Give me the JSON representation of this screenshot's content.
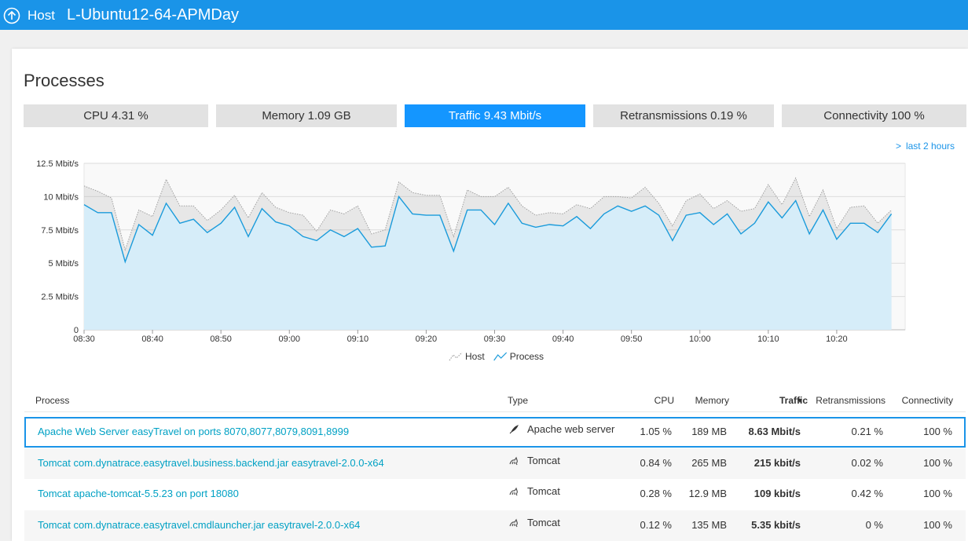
{
  "header": {
    "back": "Host",
    "title": "L-Ubuntu12-64-APMDay"
  },
  "section_title": "Processes",
  "tabs": [
    "CPU 4.31 %",
    "Memory 1.09 GB",
    "Traffic 9.43 Mbit/s",
    "Retransmissions 0.19 %",
    "Connectivity 100 %"
  ],
  "active_tab": 2,
  "time_range": "last 2 hours",
  "chart_data": {
    "type": "area",
    "x": [
      "08:30",
      "08:32",
      "08:34",
      "08:36",
      "08:38",
      "08:40",
      "08:42",
      "08:44",
      "08:46",
      "08:48",
      "08:50",
      "08:52",
      "08:54",
      "08:56",
      "08:58",
      "09:00",
      "09:02",
      "09:04",
      "09:06",
      "09:08",
      "09:10",
      "09:12",
      "09:14",
      "09:16",
      "09:18",
      "09:20",
      "09:22",
      "09:24",
      "09:26",
      "09:28",
      "09:30",
      "09:32",
      "09:34",
      "09:36",
      "09:38",
      "09:40",
      "09:42",
      "09:44",
      "09:46",
      "09:48",
      "09:50",
      "09:52",
      "09:54",
      "09:56",
      "09:58",
      "10:00",
      "10:02",
      "10:04",
      "10:06",
      "10:08",
      "10:10",
      "10:12",
      "10:14",
      "10:16",
      "10:18",
      "10:20",
      "10:22",
      "10:24",
      "10:26",
      "10:28"
    ],
    "series": [
      {
        "name": "Host",
        "color": "#a0a0a0",
        "values": [
          10.8,
          10.4,
          9.9,
          6.0,
          9.0,
          8.5,
          11.3,
          9.3,
          9.3,
          8.2,
          9.0,
          10.1,
          8.4,
          10.3,
          9.2,
          8.8,
          8.6,
          7.4,
          9.0,
          8.7,
          9.3,
          7.2,
          7.5,
          11.1,
          10.3,
          10.1,
          10.1,
          7.0,
          10.5,
          10.0,
          10.0,
          10.7,
          9.3,
          8.6,
          8.8,
          8.7,
          9.4,
          9.1,
          10.0,
          10.0,
          9.9,
          10.7,
          9.5,
          7.8,
          9.7,
          10.2,
          9.1,
          9.7,
          8.9,
          9.1,
          10.9,
          9.4,
          11.4,
          8.5,
          10.5,
          7.6,
          9.2,
          9.3,
          8.0,
          9.0
        ]
      },
      {
        "name": "Process",
        "color": "#1a9bdb",
        "values": [
          9.4,
          8.8,
          8.8,
          5.1,
          7.9,
          7.1,
          9.5,
          8.0,
          8.3,
          7.3,
          8.0,
          9.2,
          7.0,
          9.1,
          8.1,
          7.8,
          7.0,
          6.7,
          7.5,
          7.0,
          7.6,
          6.2,
          6.3,
          10.0,
          8.7,
          8.6,
          8.6,
          5.9,
          9.0,
          9.0,
          7.9,
          9.5,
          8.0,
          7.7,
          7.9,
          7.8,
          8.5,
          7.6,
          8.7,
          9.3,
          8.9,
          9.3,
          8.6,
          6.7,
          8.6,
          8.8,
          7.9,
          8.7,
          7.2,
          8.0,
          9.6,
          8.4,
          9.7,
          7.2,
          9.0,
          6.8,
          8.0,
          8.0,
          7.3,
          8.7
        ]
      }
    ],
    "xlim": [
      "08:30",
      "10:30"
    ],
    "xticks": [
      "08:30",
      "08:40",
      "08:50",
      "09:00",
      "09:10",
      "09:20",
      "09:30",
      "09:40",
      "09:50",
      "10:00",
      "10:10",
      "10:20"
    ],
    "ylim": [
      0,
      12.5
    ],
    "yticks": [
      0,
      {
        "value": 2.5,
        "label": "2.5 Mbit/s"
      },
      {
        "value": 5,
        "label": "5 Mbit/s"
      },
      {
        "value": 7.5,
        "label": "7.5 Mbit/s"
      },
      {
        "value": 10,
        "label": "10 Mbit/s"
      },
      {
        "value": 12.5,
        "label": "12.5 Mbit/s"
      }
    ],
    "grid": true,
    "legend": "bottom"
  },
  "table": {
    "columns": [
      "Process",
      "Type",
      "CPU",
      "Memory",
      "Traffic",
      "Retransmissions",
      "Connectivity"
    ],
    "sorted_column": 4,
    "selected_row": 0,
    "rows": [
      [
        "Apache Web Server easyTravel on ports 8070,8077,8079,8091,8999",
        "Apache web server",
        "1.05 %",
        "189 MB",
        "8.63 Mbit/s",
        "0.21 %",
        "100 %"
      ],
      [
        "Tomcat com.dynatrace.easytravel.business.backend.jar easytravel-2.0.0-x64",
        "Tomcat",
        "0.84 %",
        "265 MB",
        "215 kbit/s",
        "0.02 %",
        "100 %"
      ],
      [
        "Tomcat apache-tomcat-5.5.23 on port 18080",
        "Tomcat",
        "0.28 %",
        "12.9 MB",
        "109 kbit/s",
        "0.42 %",
        "100 %"
      ],
      [
        "Tomcat com.dynatrace.easytravel.cmdlauncher.jar easytravel-2.0.0-x64",
        "Tomcat",
        "0.12 %",
        "135 MB",
        "5.35 kbit/s",
        "0 %",
        "100 %"
      ]
    ]
  }
}
